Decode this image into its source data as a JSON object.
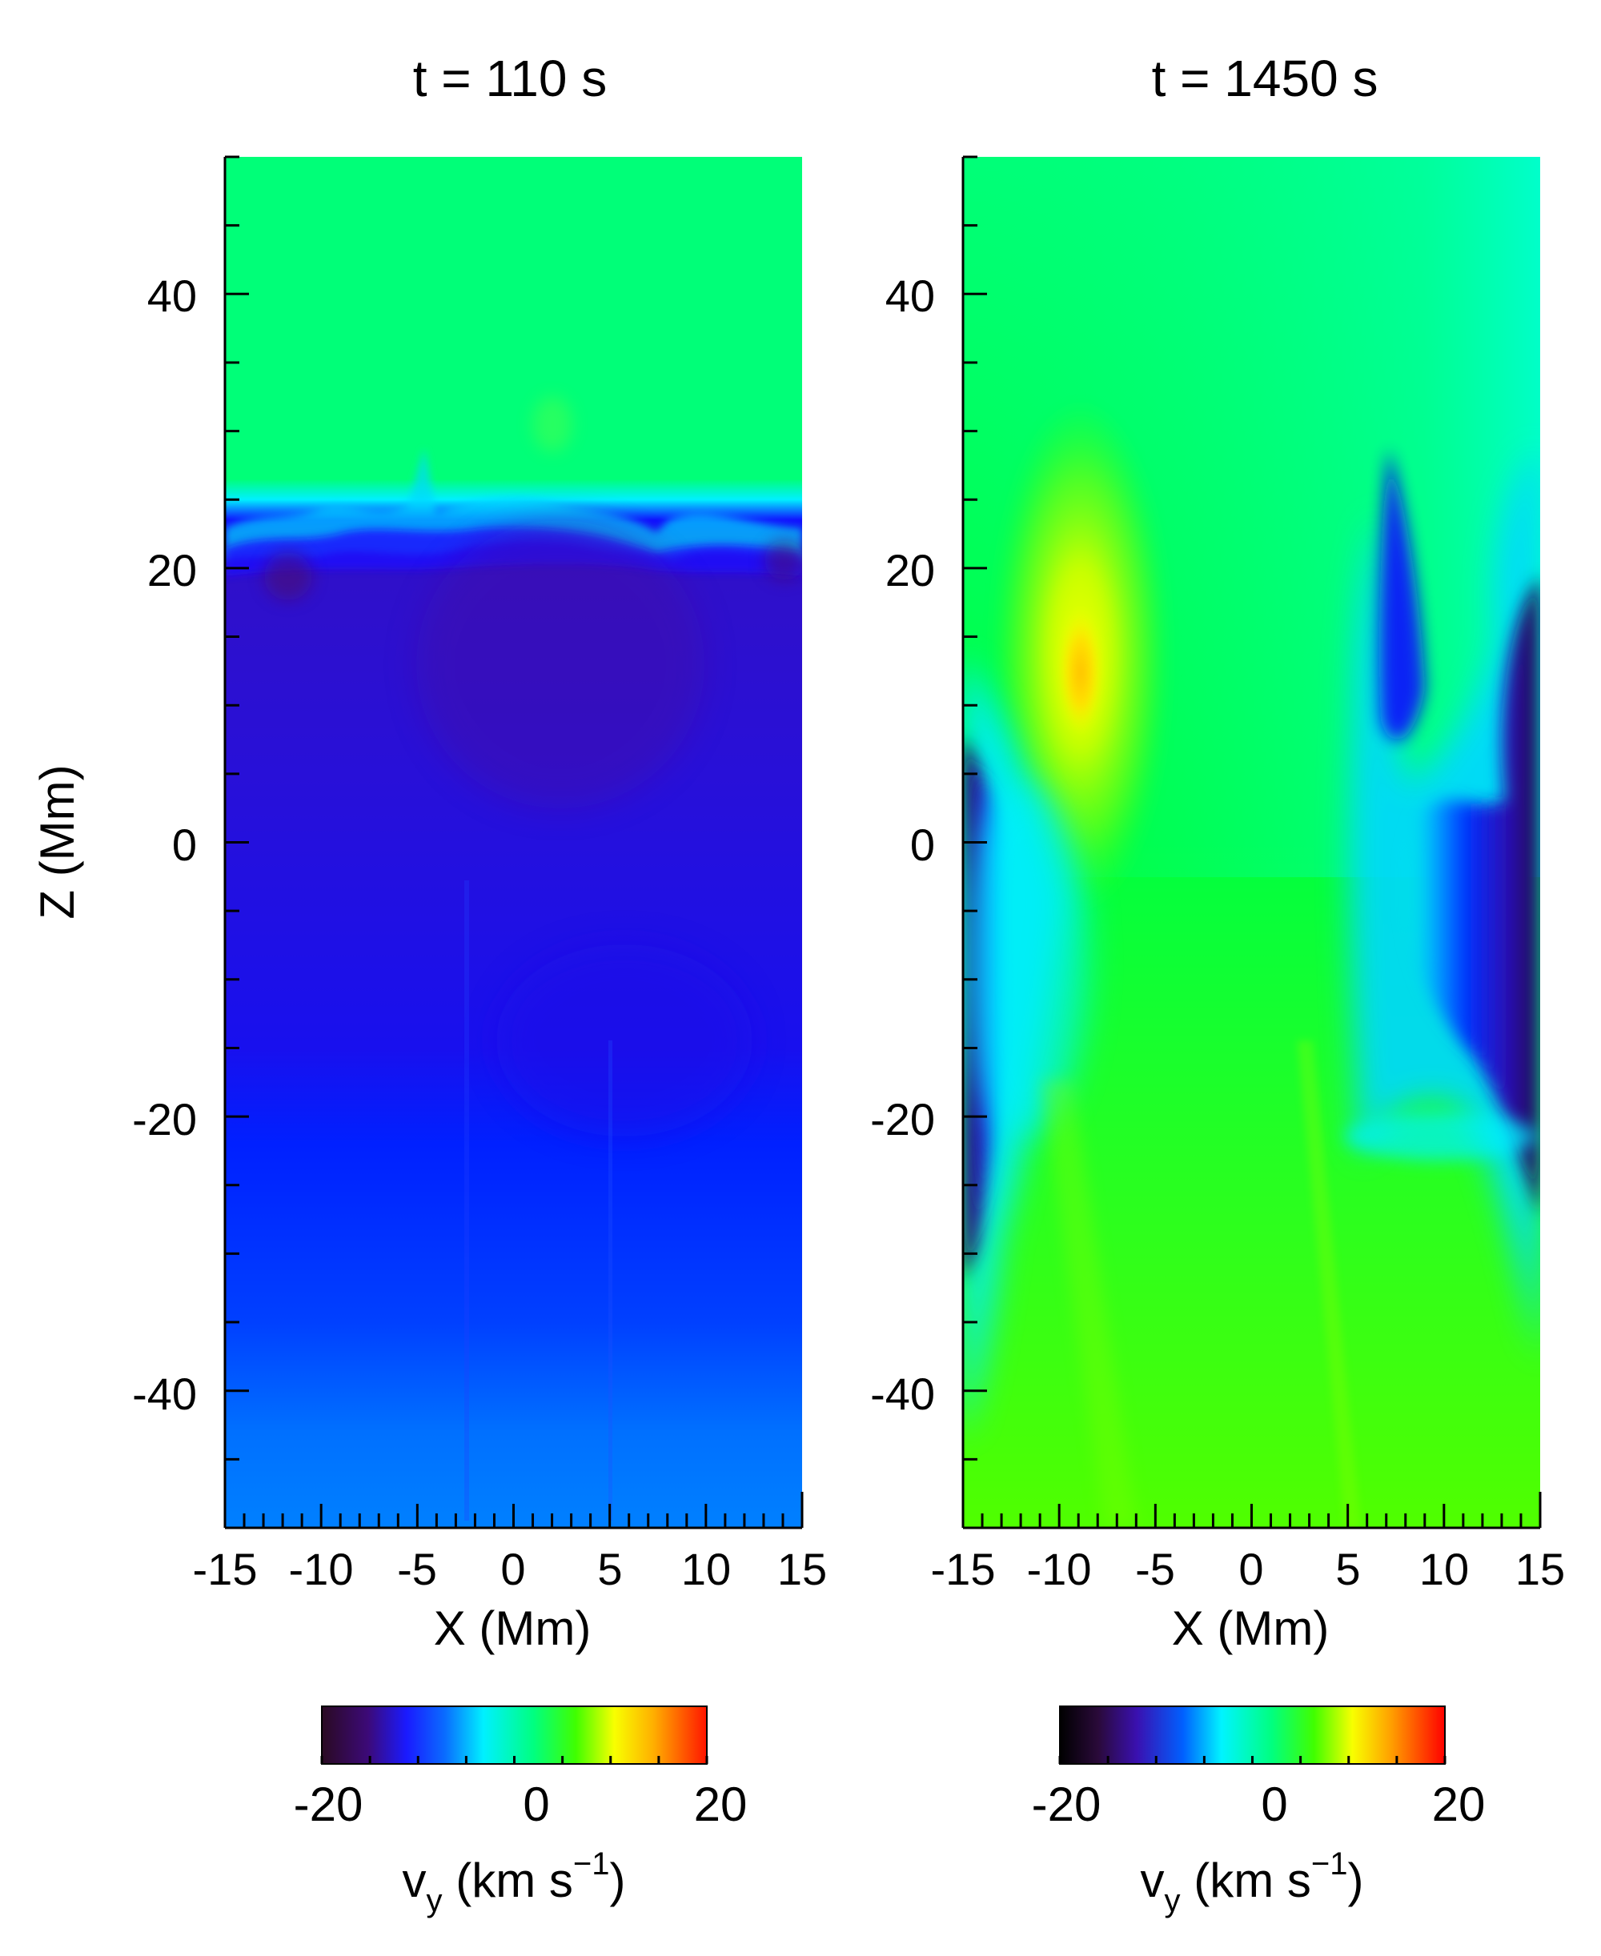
{
  "chart_data": [
    {
      "type": "heatmap",
      "title": "t = 110 s",
      "xlabel": "X (Mm)",
      "ylabel": "Z (Mm)",
      "xlim": [
        -15,
        15
      ],
      "ylim": [
        -50,
        50
      ],
      "x_ticks": [
        "-15",
        "-10",
        "-5",
        "0",
        "5",
        "10",
        "15"
      ],
      "y_ticks": [
        "40",
        "20",
        "0",
        "-20",
        "-40"
      ],
      "field": "v_y",
      "z_range": [
        -20,
        20
      ],
      "description_regions": [
        {
          "z_range": [
            23,
            50
          ],
          "vy": 0
        },
        {
          "z_range": [
            -15,
            22
          ],
          "vy": -16
        },
        {
          "z_range": [
            -40,
            -15
          ],
          "vy": -14
        },
        {
          "z_range": [
            -50,
            -40
          ],
          "vy": -10
        }
      ],
      "colorbar": {
        "ticks": [
          "-20",
          "0",
          "20"
        ],
        "label_main": "v",
        "label_sub": "y",
        "label_unit": " (km s",
        "label_sup": "−1",
        "label_close": ")"
      }
    },
    {
      "type": "heatmap",
      "title": "t = 1450 s",
      "xlabel": "X (Mm)",
      "ylabel": "",
      "xlim": [
        -15,
        15
      ],
      "ylim": [
        -50,
        50
      ],
      "x_ticks": [
        "-15",
        "-10",
        "-5",
        "0",
        "5",
        "10",
        "15"
      ],
      "y_ticks": [
        "40",
        "20",
        "0",
        "-20",
        "-40"
      ],
      "field": "v_y",
      "z_range": [
        -20,
        20
      ],
      "colorbar": {
        "ticks": [
          "-20",
          "0",
          "20"
        ],
        "label_main": "v",
        "label_sub": "y",
        "label_unit": " (km s",
        "label_sup": "−1",
        "label_close": ")"
      }
    }
  ]
}
